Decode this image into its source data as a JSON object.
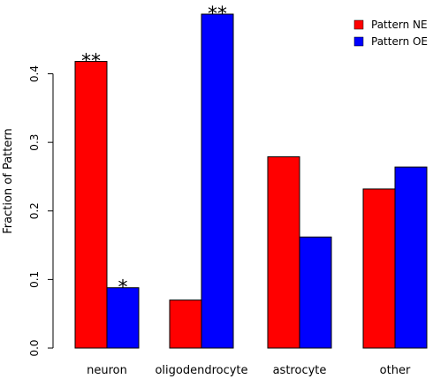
{
  "chart_data": {
    "type": "bar",
    "title": "",
    "xlabel": "",
    "ylabel": "Fraction of Pattern",
    "categories": [
      "neuron",
      "oligodendrocyte",
      "astrocyte",
      "other"
    ],
    "series": [
      {
        "name": "Pattern NE",
        "color": "#ff0000",
        "values": [
          0.418,
          0.07,
          0.279,
          0.232
        ],
        "annotations": [
          "**",
          "",
          "",
          ""
        ]
      },
      {
        "name": "Pattern OE",
        "color": "#0000ff",
        "values": [
          0.088,
          0.487,
          0.162,
          0.264
        ],
        "annotations": [
          "*",
          "**",
          "",
          ""
        ]
      }
    ],
    "ylim": [
      0,
      0.487
    ],
    "yticks": [
      "0.0",
      "0.1",
      "0.2",
      "0.3",
      "0.4"
    ],
    "grid": false,
    "legend_position": "top-right"
  }
}
